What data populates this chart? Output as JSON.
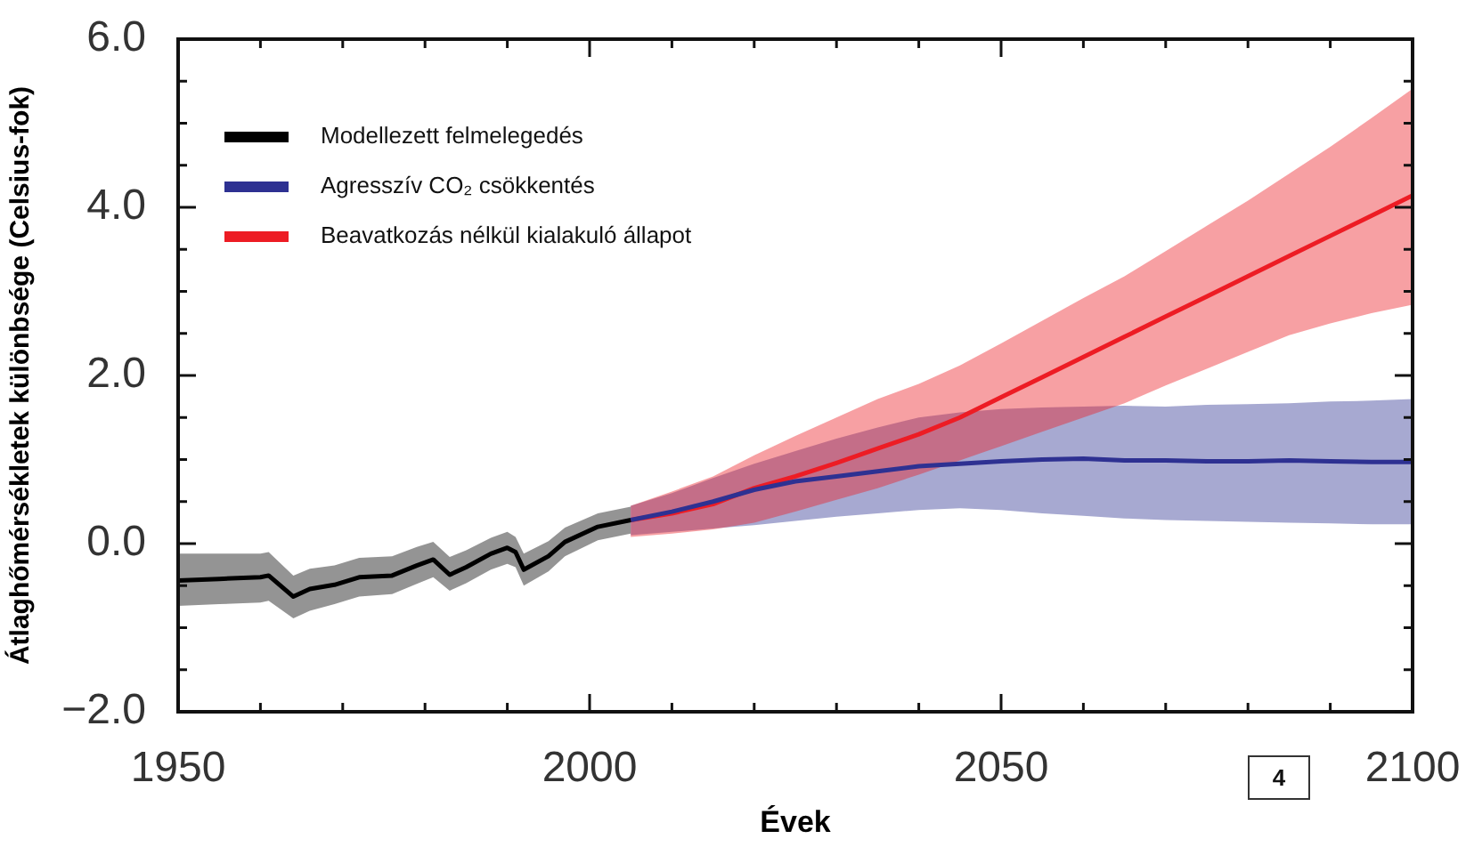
{
  "chart_data": {
    "type": "line",
    "xlabel": "Évek",
    "ylabel": "Átlaghőmérsékletek különbsége (Celsius-fok)",
    "annotations": [
      "4"
    ],
    "xlim": [
      1950,
      2100
    ],
    "ylim": [
      -2,
      6
    ],
    "xticks": [
      1950,
      {
        "value": 1960,
        "label": null
      },
      {
        "value": 1970,
        "label": null
      },
      {
        "value": 1980,
        "label": null
      },
      {
        "value": 1990,
        "label": null
      },
      2000,
      {
        "value": 2010,
        "label": null
      },
      {
        "value": 2020,
        "label": null
      },
      {
        "value": 2030,
        "label": null
      },
      {
        "value": 2040,
        "label": null
      },
      2050,
      {
        "value": 2060,
        "label": null
      },
      {
        "value": 2070,
        "label": null
      },
      {
        "value": 2080,
        "label": null
      },
      {
        "value": 2090,
        "label": null
      },
      2100
    ],
    "yticks": [
      {
        "value": -2,
        "label": "−2.0"
      },
      {
        "value": -1.5,
        "label": null
      },
      {
        "value": -1,
        "label": null
      },
      {
        "value": -0.5,
        "label": null
      },
      {
        "value": 0,
        "label": "0.0"
      },
      {
        "value": 0.5,
        "label": null
      },
      {
        "value": 1,
        "label": null
      },
      {
        "value": 1.5,
        "label": null
      },
      {
        "value": 2,
        "label": "2.0"
      },
      {
        "value": 2.5,
        "label": null
      },
      {
        "value": 3,
        "label": null
      },
      {
        "value": 3.5,
        "label": null
      },
      {
        "value": 4,
        "label": "4.0"
      },
      {
        "value": 4.5,
        "label": null
      },
      {
        "value": 5,
        "label": null
      },
      {
        "value": 5.5,
        "label": null
      },
      {
        "value": 6,
        "label": "6.0"
      }
    ],
    "legend": "top left",
    "marker": "none",
    "line_style": "solid",
    "series": [
      {
        "name": "Modellezett felmelegedés",
        "color": "#000000",
        "x": [
          1950,
          1955,
          1960,
          1961,
          1964,
          1966,
          1969,
          1972,
          1976,
          1979,
          1981,
          1983,
          1985,
          1988,
          1990,
          1991,
          1992,
          1995,
          1997,
          2001,
          2005
        ],
        "values": [
          -0.44,
          -0.42,
          -0.4,
          -0.38,
          -0.63,
          -0.54,
          -0.49,
          -0.4,
          -0.38,
          -0.26,
          -0.19,
          -0.37,
          -0.28,
          -0.12,
          -0.05,
          -0.1,
          -0.31,
          -0.15,
          0.02,
          0.2,
          0.28
        ],
        "lower": [
          -0.74,
          -0.72,
          -0.7,
          -0.68,
          -0.89,
          -0.8,
          -0.72,
          -0.63,
          -0.6,
          -0.48,
          -0.4,
          -0.56,
          -0.47,
          -0.31,
          -0.24,
          -0.28,
          -0.5,
          -0.33,
          -0.15,
          0.04,
          0.12
        ],
        "upper": [
          -0.12,
          -0.12,
          -0.12,
          -0.1,
          -0.38,
          -0.3,
          -0.26,
          -0.17,
          -0.15,
          -0.04,
          0.02,
          -0.16,
          -0.08,
          0.07,
          0.14,
          0.08,
          -0.12,
          0.03,
          0.19,
          0.36,
          0.44
        ]
      },
      {
        "name": "Agresszív CO₂ csökkentés",
        "color": "#2e3192",
        "x": [
          2005,
          2010,
          2015,
          2020,
          2025,
          2030,
          2035,
          2040,
          2045,
          2050,
          2055,
          2060,
          2065,
          2070,
          2075,
          2080,
          2085,
          2090,
          2095,
          2100
        ],
        "values": [
          0.28,
          0.38,
          0.5,
          0.64,
          0.74,
          0.8,
          0.86,
          0.92,
          0.95,
          0.98,
          1.0,
          1.01,
          0.99,
          0.99,
          0.98,
          0.98,
          0.99,
          0.98,
          0.97,
          0.97
        ],
        "lower": [
          0.1,
          0.14,
          0.18,
          0.22,
          0.27,
          0.32,
          0.36,
          0.4,
          0.42,
          0.4,
          0.36,
          0.33,
          0.3,
          0.28,
          0.27,
          0.26,
          0.25,
          0.24,
          0.23,
          0.23
        ],
        "upper": [
          0.45,
          0.6,
          0.78,
          0.95,
          1.1,
          1.25,
          1.38,
          1.5,
          1.56,
          1.6,
          1.62,
          1.63,
          1.64,
          1.63,
          1.65,
          1.66,
          1.67,
          1.69,
          1.7,
          1.72
        ]
      },
      {
        "name": "Beavatkozás nélkül kialakuló állapot",
        "color": "#ed1c24",
        "x": [
          2005,
          2010,
          2015,
          2020,
          2025,
          2030,
          2035,
          2040,
          2045,
          2050,
          2055,
          2060,
          2065,
          2070,
          2075,
          2080,
          2085,
          2090,
          2095,
          2100
        ],
        "values": [
          0.28,
          0.36,
          0.47,
          0.66,
          0.8,
          0.96,
          1.13,
          1.3,
          1.5,
          1.74,
          1.98,
          2.22,
          2.46,
          2.7,
          2.94,
          3.18,
          3.42,
          3.66,
          3.9,
          4.14
        ],
        "lower": [
          0.08,
          0.12,
          0.17,
          0.25,
          0.38,
          0.52,
          0.66,
          0.82,
          0.99,
          1.16,
          1.33,
          1.5,
          1.67,
          1.88,
          2.08,
          2.28,
          2.48,
          2.62,
          2.74,
          2.84
        ],
        "upper": [
          0.45,
          0.62,
          0.8,
          1.05,
          1.28,
          1.5,
          1.72,
          1.9,
          2.12,
          2.38,
          2.65,
          2.92,
          3.18,
          3.48,
          3.78,
          4.08,
          4.4,
          4.72,
          5.06,
          5.41
        ]
      }
    ]
  }
}
